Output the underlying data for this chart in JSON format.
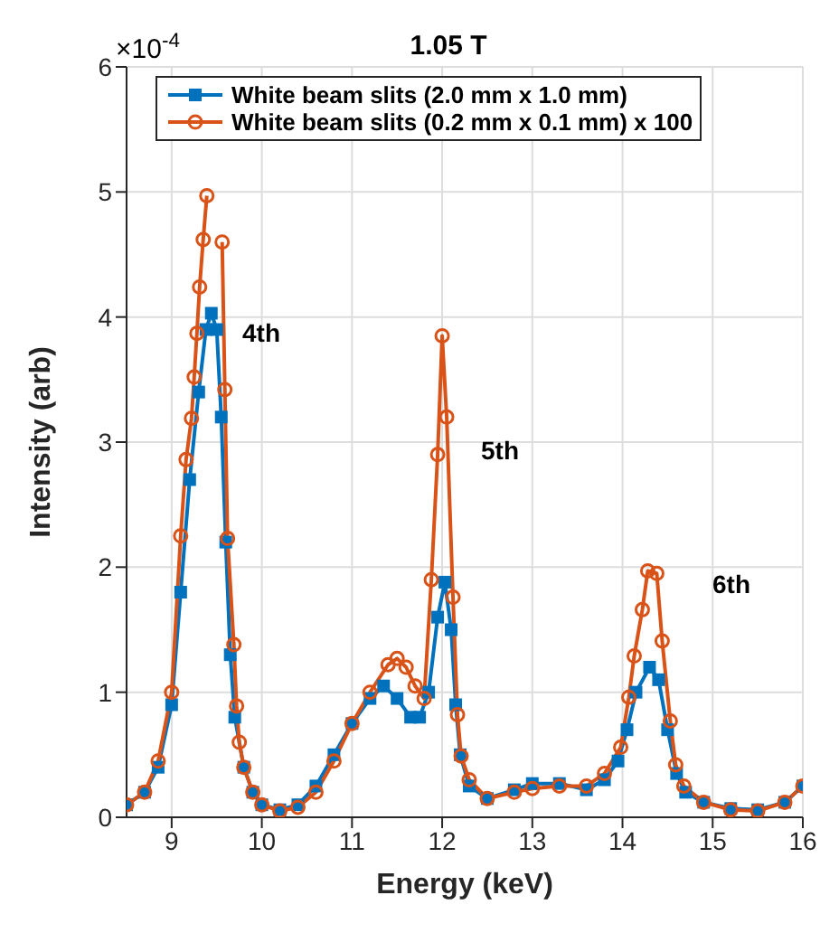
{
  "chart_data": {
    "type": "line",
    "title": "1.05 T",
    "xlabel": "Energy (keV)",
    "ylabel": "Intensity (arb)",
    "annotations": [
      "×10$^{-4}$",
      "4th",
      "5th",
      "6th"
    ],
    "xlim": [
      8.5,
      16
    ],
    "xticks": [
      9,
      10,
      11,
      12,
      13,
      14,
      15,
      16
    ],
    "ylim": [
      0,
      6
    ],
    "yticks": [
      0,
      1,
      2,
      3,
      4,
      5,
      6
    ],
    "grid": true,
    "legend": "top",
    "line_style": "solid",
    "series": [
      {
        "name": "White beam slits (2.0 mm x 1.0 mm)",
        "color": "#0072bd",
        "marker": "square",
        "x": [
          8.5,
          8.7,
          8.85,
          9.0,
          9.1,
          9.2,
          9.3,
          9.38,
          9.44,
          9.5,
          9.55,
          9.6,
          9.65,
          9.7,
          9.8,
          9.9,
          10.0,
          10.2,
          10.4,
          10.6,
          10.8,
          11.0,
          11.2,
          11.35,
          11.5,
          11.65,
          11.75,
          11.85,
          11.95,
          12.03,
          12.1,
          12.15,
          12.2,
          12.3,
          12.5,
          12.8,
          13.0,
          13.3,
          13.6,
          13.8,
          13.95,
          14.05,
          14.15,
          14.3,
          14.4,
          14.5,
          14.6,
          14.7,
          14.9,
          15.2,
          15.5,
          15.8,
          16.0
        ],
        "values": [
          0.1,
          0.2,
          0.4,
          0.9,
          1.8,
          2.7,
          3.4,
          3.9,
          4.03,
          3.9,
          3.2,
          2.2,
          1.3,
          0.8,
          0.4,
          0.2,
          0.1,
          0.06,
          0.1,
          0.25,
          0.5,
          0.75,
          0.95,
          1.05,
          0.95,
          0.8,
          0.8,
          1.0,
          1.6,
          1.88,
          1.5,
          0.9,
          0.5,
          0.25,
          0.15,
          0.22,
          0.27,
          0.27,
          0.22,
          0.3,
          0.45,
          0.7,
          1.0,
          1.2,
          1.1,
          0.7,
          0.35,
          0.2,
          0.12,
          0.07,
          0.06,
          0.12,
          0.25
        ]
      },
      {
        "name": "White beam slits (0.2 mm x 0.1 mm) x 100",
        "color": "#d95319",
        "marker": "circle",
        "x": [
          8.5,
          8.7,
          8.85,
          9.0,
          9.1,
          9.16,
          9.22,
          9.25,
          9.28,
          9.31,
          9.35,
          9.39,
          9.47,
          9.56,
          9.59,
          9.62,
          9.69,
          9.72,
          9.75,
          9.8,
          9.9,
          10.0,
          10.2,
          10.4,
          10.6,
          10.8,
          11.0,
          11.2,
          11.4,
          11.5,
          11.6,
          11.7,
          11.8,
          11.88,
          11.95,
          12.0,
          12.05,
          12.12,
          12.17,
          12.21,
          12.3,
          12.5,
          12.8,
          13.0,
          13.3,
          13.6,
          13.8,
          13.98,
          14.07,
          14.13,
          14.22,
          14.28,
          14.38,
          14.44,
          14.53,
          14.59,
          14.68,
          14.9,
          15.2,
          15.5,
          15.8,
          16.0
        ],
        "values": [
          0.1,
          0.2,
          0.45,
          1.0,
          2.25,
          2.86,
          3.19,
          3.52,
          3.87,
          4.24,
          4.62,
          4.97,
          null,
          4.6,
          3.42,
          2.23,
          1.38,
          0.89,
          0.6,
          0.4,
          0.2,
          0.1,
          0.05,
          0.08,
          0.2,
          0.45,
          0.75,
          1.0,
          1.22,
          1.27,
          1.2,
          1.05,
          0.95,
          1.9,
          2.9,
          3.85,
          3.2,
          1.76,
          0.82,
          0.49,
          0.3,
          0.15,
          0.2,
          0.23,
          0.25,
          0.25,
          0.35,
          0.56,
          0.96,
          1.29,
          1.66,
          1.97,
          1.95,
          1.41,
          0.77,
          0.42,
          0.25,
          0.12,
          0.06,
          0.05,
          0.12,
          0.25
        ]
      }
    ]
  }
}
